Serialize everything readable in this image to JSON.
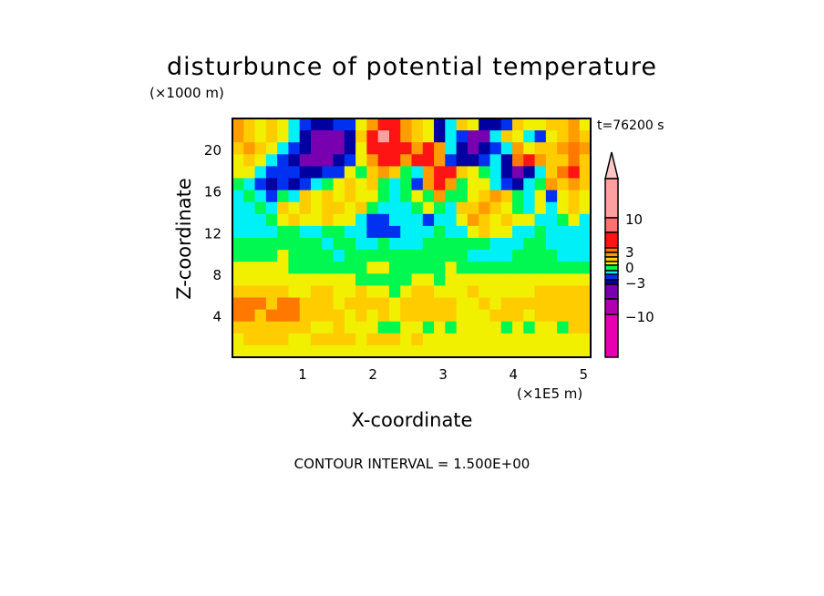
{
  "chart_data": {
    "type": "heatmap",
    "subtype": "filled-contour",
    "title": "disturbunce of potential temperature",
    "xlabel": "X-coordinate",
    "ylabel": "Z-coordinate",
    "x_unit": "(×1E5 m)",
    "y_unit": "(×1000 m)",
    "time_label": "t=76200 s",
    "contour_interval_label": "CONTOUR INTERVAL = 1.500E+00",
    "xlim": [
      0,
      5.1
    ],
    "ylim": [
      0,
      23
    ],
    "x_ticks": [
      1,
      2,
      3,
      4,
      5
    ],
    "x_tick_labels": [
      "1",
      "2",
      "3",
      "4",
      "5"
    ],
    "y_ticks": [
      4,
      8,
      12,
      16,
      20
    ],
    "y_tick_labels": [
      "4",
      "8",
      "12",
      "16",
      "20"
    ],
    "colorbar": {
      "labels": [
        {
          "text": "10",
          "value": 10
        },
        {
          "text": "3",
          "value": 3
        },
        {
          "text": "0",
          "value": 0
        },
        {
          "text": "−3",
          "value": -3
        },
        {
          "text": "−10",
          "value": -10
        }
      ],
      "bands": [
        {
          "code": "T",
          "color": "#ffc4c4"
        },
        {
          "code": "P",
          "color": "#ffa0a0"
        },
        {
          "code": "S",
          "color": "#ff7070"
        },
        {
          "code": "R",
          "color": "#ff1414"
        },
        {
          "code": "O",
          "color": "#ff7800"
        },
        {
          "code": "o",
          "color": "#ff9c00"
        },
        {
          "code": "A",
          "color": "#ffcc00"
        },
        {
          "code": "Y",
          "color": "#f0f000"
        },
        {
          "code": "G",
          "color": "#00f850"
        },
        {
          "code": "C",
          "color": "#00f0f8"
        },
        {
          "code": "B",
          "color": "#0030f0"
        },
        {
          "code": "D",
          "color": "#0000a0"
        },
        {
          "code": "V",
          "color": "#7800b0"
        },
        {
          "code": "M",
          "color": "#b000b0"
        },
        {
          "code": "F",
          "color": "#e800b0"
        }
      ]
    },
    "field": [
      "oAYAYCBDDBBYoRRoAYDCAYDDBAYYAAoY",
      "oAYAYCDVVVDARPRoAYDCBVVCAYCBYAoA",
      "AoAYCBDVVVDYRRRRoRoCDVDBCoYAAoOo",
      "YAYCBDVVVDBYoRRoRRoBDDBCDORoAAOA",
      "YYCBBBDDBBYGAoAGCoRRAYGCDVDCAORA",
      "GCBDBDBCGYAYAGCGBoRoGYYCBDCGoAoA",
      "CGCBGCAYAYAYYGCGYGoGGYAoAGCYBYAY",
      "CCGCAYAYAAYAGCCCGYGCAAoAYGCYCYAY",
      "CCCGYAYYAYYCBBCCCBCCYoAYAYYCCGYC",
      "CCCCGGCCGGCCBBBCCCGCCYAYYCCGCCCC",
      "GGGGGGGGCGGCCGCCCGGGGGGCCCGGCCCC",
      "GGGGYGGGGCGGGGGGGGGGGCCCCGGGGCCC",
      "YYYYYGGGGGGGYYGGGGGYGGGGGGGGGGGG",
      "YYYYYYYYYYYGGGGGYYGYYYYYYYYYYYYY",
      "AAAAAYYAAYYAYYGYAAYYYAYYYYYAAAAA",
      "OOOAOOAAAYAAAAYAAAAAYYAYAAAAAAAA",
      "OOAOOOAAAAYAYAYAAAAAYYYAAAYAAAAA",
      "AAAAAAAYYAYYYGGYYGYGYYYYGYGYYGAA",
      "YAAAAYYAAAAYAAAYAYYYYYYYYYYYYYYY",
      "YYYYYYYYYYYYYYYYYYYYYYYYYYYYYYYY"
    ]
  }
}
